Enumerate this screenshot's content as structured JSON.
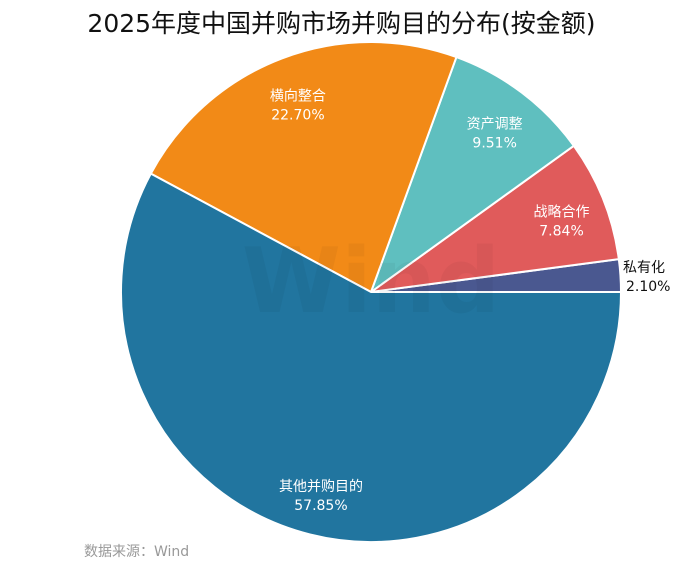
{
  "chart_data": {
    "type": "pie",
    "title": "2025年度中国并购市场并购目的分布(按金额)",
    "start_direction": "counter-clockwise from 3 o'clock",
    "slices": [
      {
        "label": "私有化",
        "value": 2.1,
        "display": "2.10%",
        "color": "#4a5890",
        "label_position": "outside"
      },
      {
        "label": "战略合作",
        "value": 7.84,
        "display": "7.84%",
        "color": "#e05b5b",
        "label_position": "inside"
      },
      {
        "label": "资产调整",
        "value": 9.51,
        "display": "9.51%",
        "color": "#5fbfbf",
        "label_position": "inside"
      },
      {
        "label": "横向整合",
        "value": 22.7,
        "display": "22.70%",
        "color": "#f28a17",
        "label_position": "inside"
      },
      {
        "label": "其他并购目的",
        "value": 57.85,
        "display": "57.85%",
        "color": "#21759f",
        "label_position": "inside"
      }
    ],
    "source": "数据来源：Wind"
  }
}
